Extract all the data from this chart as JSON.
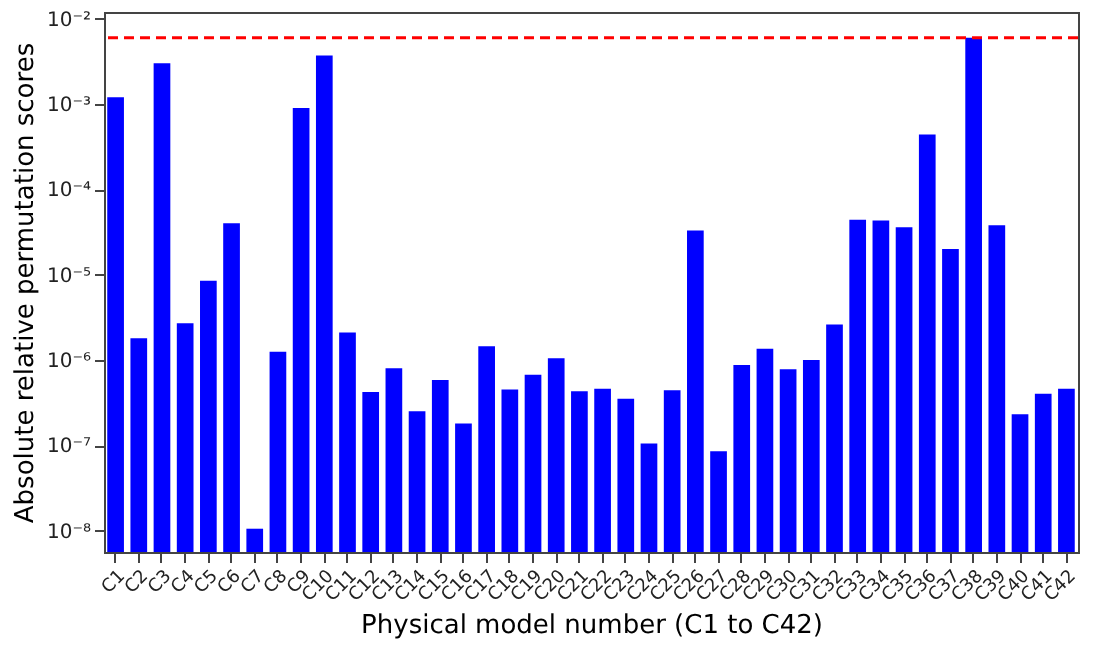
{
  "chart_data": {
    "type": "bar",
    "xlabel": "Physical model number (C1 to C42)",
    "ylabel": "Absolute relative permutation scores",
    "categories": [
      "C1",
      "C2",
      "C3",
      "C4",
      "C5",
      "C6",
      "C7",
      "C8",
      "C9",
      "C10",
      "C11",
      "C12",
      "C13",
      "C14",
      "C15",
      "C16",
      "C17",
      "C18",
      "C19",
      "C20",
      "C21",
      "C22",
      "C23",
      "C24",
      "C25",
      "C26",
      "C27",
      "C28",
      "C29",
      "C30",
      "C31",
      "C32",
      "C33",
      "C34",
      "C35",
      "C36",
      "C37",
      "C38",
      "C39",
      "C40",
      "C41",
      "C42"
    ],
    "values": [
      0.0012,
      1.8e-06,
      0.003,
      2.7e-06,
      8.5e-06,
      4e-05,
      1.05e-08,
      1.25e-06,
      0.0009,
      0.0037,
      2.1e-06,
      4.2e-07,
      8e-07,
      2.5e-07,
      5.8e-07,
      1.8e-07,
      1.45e-06,
      4.5e-07,
      6.7e-07,
      1.05e-06,
      4.3e-07,
      4.6e-07,
      3.5e-07,
      1.05e-07,
      4.4e-07,
      3.3e-05,
      8.5e-08,
      8.7e-07,
      1.35e-06,
      7.8e-07,
      1e-06,
      2.6e-06,
      4.4e-05,
      4.3e-05,
      3.6e-05,
      0.00044,
      2e-05,
      0.006,
      3.8e-05,
      2.3e-07,
      4e-07,
      4.6e-07
    ],
    "color": "#0000ff",
    "log": true,
    "ylim": [
      5.6e-09,
      0.012
    ],
    "yticks": [
      {
        "value": 1e-08,
        "label": "10⁻⁸"
      },
      {
        "value": 1e-07,
        "label": "10⁻⁷"
      },
      {
        "value": 1e-06,
        "label": "10⁻⁶"
      },
      {
        "value": 1e-05,
        "label": "10⁻⁵"
      },
      {
        "value": 0.0001,
        "label": "10⁻⁴"
      },
      {
        "value": 0.001,
        "label": "10⁻³"
      },
      {
        "value": 0.01,
        "label": "10⁻²"
      }
    ],
    "ref_lines": [
      {
        "axis": "y",
        "value": 0.006,
        "color": "#ff0000",
        "line_style": "dashed"
      }
    ],
    "grid": false
  }
}
